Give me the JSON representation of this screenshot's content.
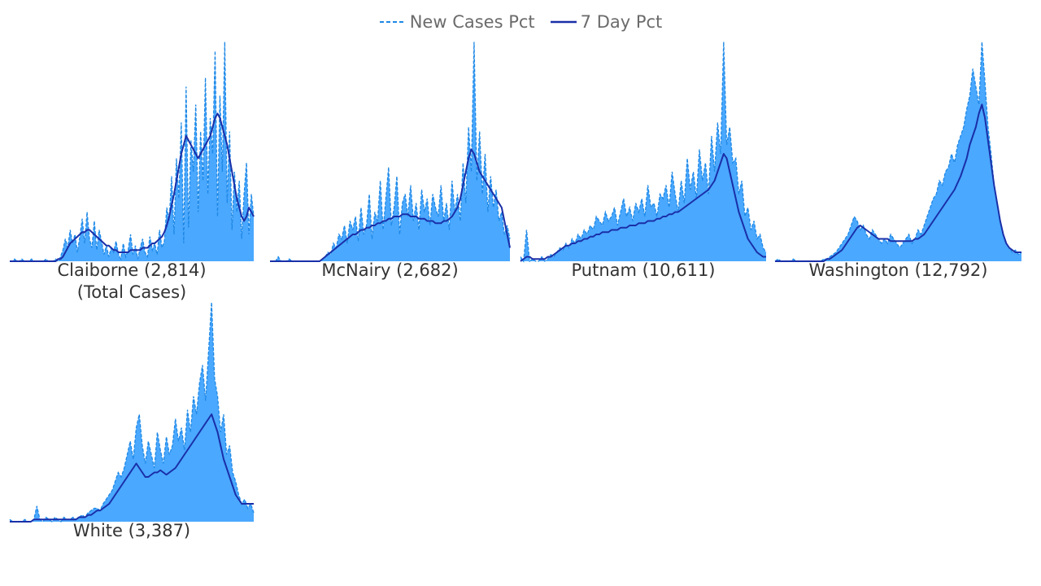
{
  "legend": {
    "new_label": "New Cases Pct",
    "avg_label": "7 Day Pct"
  },
  "colors": {
    "fill": "#4aa8ff",
    "dashed": "#1e88e5",
    "avg": "#1a2fa8"
  },
  "chart_data": [
    {
      "type": "area",
      "label": "Claiborne (2,814)",
      "sublabel": "(Total Cases)",
      "ylim": [
        0,
        100
      ],
      "grid": false,
      "legend_position": "top-center",
      "series": [
        {
          "name": "New Cases Pct",
          "values": [
            0,
            0,
            1,
            0,
            0,
            1,
            0,
            0,
            0,
            1,
            0,
            0,
            0,
            0,
            0,
            1,
            0,
            0,
            0,
            1,
            0,
            2,
            5,
            10,
            6,
            14,
            8,
            12,
            4,
            11,
            19,
            8,
            22,
            10,
            6,
            18,
            5,
            14,
            9,
            3,
            7,
            2,
            6,
            4,
            9,
            3,
            1,
            8,
            2,
            5,
            12,
            3,
            7,
            1,
            6,
            10,
            4,
            2,
            11,
            5,
            8,
            3,
            14,
            6,
            9,
            24,
            18,
            38,
            12,
            46,
            28,
            62,
            8,
            78,
            15,
            54,
            40,
            70,
            22,
            58,
            36,
            82,
            30,
            64,
            48,
            94,
            20,
            74,
            40,
            98,
            26,
            58,
            14,
            40,
            22,
            36,
            10,
            30,
            44,
            12,
            30,
            20
          ]
        },
        {
          "name": "7 Day Pct",
          "values": [
            0,
            0,
            0,
            0,
            0,
            0,
            0,
            0,
            0,
            0,
            0,
            0,
            0,
            0,
            0,
            0,
            0,
            0,
            0,
            0,
            1,
            1,
            2,
            4,
            6,
            8,
            9,
            10,
            11,
            12,
            13,
            13,
            14,
            14,
            13,
            12,
            11,
            10,
            9,
            8,
            7,
            7,
            6,
            5,
            5,
            4,
            4,
            4,
            4,
            4,
            5,
            5,
            5,
            5,
            5,
            6,
            6,
            6,
            7,
            8,
            8,
            9,
            10,
            11,
            13,
            16,
            20,
            25,
            30,
            36,
            42,
            48,
            52,
            56,
            54,
            52,
            50,
            48,
            46,
            48,
            50,
            52,
            54,
            56,
            60,
            64,
            66,
            64,
            60,
            56,
            52,
            46,
            40,
            34,
            28,
            24,
            20,
            18,
            20,
            24,
            22,
            20
          ]
        }
      ]
    },
    {
      "type": "area",
      "label": "McNairy (2,682)",
      "sublabel": "",
      "ylim": [
        0,
        100
      ],
      "grid": false,
      "series": [
        {
          "name": "New Cases Pct",
          "values": [
            0,
            0,
            0,
            2,
            0,
            0,
            0,
            1,
            0,
            0,
            0,
            0,
            0,
            0,
            0,
            0,
            0,
            0,
            0,
            1,
            2,
            4,
            3,
            8,
            6,
            12,
            10,
            16,
            8,
            18,
            14,
            20,
            9,
            24,
            12,
            16,
            30,
            10,
            22,
            18,
            36,
            14,
            28,
            42,
            16,
            24,
            38,
            12,
            26,
            30,
            20,
            34,
            18,
            26,
            14,
            32,
            22,
            28,
            16,
            30,
            24,
            20,
            34,
            18,
            26,
            14,
            36,
            22,
            30,
            18,
            44,
            26,
            60,
            40,
            98,
            36,
            58,
            30,
            48,
            22,
            38,
            24,
            32,
            18,
            22,
            12,
            16,
            10
          ]
        },
        {
          "name": "7 Day Pct",
          "values": [
            0,
            0,
            0,
            0,
            0,
            0,
            0,
            0,
            0,
            0,
            0,
            0,
            0,
            0,
            0,
            0,
            0,
            0,
            0,
            1,
            2,
            3,
            4,
            5,
            6,
            7,
            8,
            9,
            10,
            11,
            12,
            12,
            13,
            14,
            14,
            15,
            15,
            16,
            16,
            17,
            17,
            18,
            18,
            19,
            19,
            20,
            20,
            20,
            21,
            21,
            21,
            20,
            20,
            20,
            19,
            19,
            19,
            18,
            18,
            18,
            17,
            17,
            17,
            18,
            18,
            19,
            20,
            22,
            24,
            28,
            34,
            40,
            46,
            50,
            48,
            44,
            40,
            38,
            36,
            34,
            32,
            30,
            28,
            26,
            24,
            18,
            12,
            6
          ]
        }
      ]
    },
    {
      "type": "area",
      "label": "Putnam (10,611)",
      "sublabel": "",
      "ylim": [
        0,
        100
      ],
      "grid": false,
      "series": [
        {
          "name": "New Cases Pct",
          "values": [
            2,
            0,
            14,
            0,
            1,
            0,
            0,
            2,
            0,
            1,
            3,
            2,
            4,
            6,
            5,
            8,
            6,
            10,
            8,
            12,
            10,
            14,
            12,
            16,
            14,
            20,
            18,
            16,
            22,
            18,
            20,
            24,
            16,
            22,
            28,
            20,
            24,
            18,
            26,
            22,
            28,
            20,
            34,
            24,
            26,
            20,
            30,
            28,
            34,
            24,
            40,
            30,
            22,
            36,
            26,
            46,
            32,
            40,
            28,
            50,
            36,
            44,
            30,
            56,
            40,
            62,
            48,
            98,
            52,
            60,
            44,
            46,
            30,
            36,
            20,
            24,
            14,
            18,
            10,
            12,
            6,
            4
          ]
        },
        {
          "name": "7 Day Pct",
          "values": [
            0,
            1,
            2,
            2,
            1,
            1,
            1,
            1,
            1,
            2,
            2,
            3,
            4,
            5,
            6,
            7,
            7,
            8,
            8,
            9,
            9,
            10,
            10,
            11,
            11,
            12,
            12,
            13,
            13,
            13,
            14,
            14,
            14,
            15,
            15,
            15,
            16,
            16,
            16,
            17,
            17,
            17,
            18,
            18,
            18,
            19,
            19,
            20,
            20,
            21,
            21,
            22,
            22,
            23,
            24,
            25,
            26,
            27,
            28,
            29,
            30,
            31,
            32,
            34,
            36,
            40,
            44,
            48,
            46,
            40,
            34,
            28,
            22,
            18,
            14,
            10,
            8,
            6,
            4,
            3,
            2,
            2
          ]
        }
      ]
    },
    {
      "type": "area",
      "label": "Washington (12,792)",
      "sublabel": "",
      "ylim": [
        0,
        100
      ],
      "grid": false,
      "series": [
        {
          "name": "New Cases Pct",
          "values": [
            0,
            1,
            0,
            0,
            0,
            0,
            1,
            0,
            0,
            0,
            0,
            0,
            0,
            0,
            0,
            0,
            1,
            1,
            2,
            3,
            4,
            6,
            8,
            10,
            12,
            16,
            20,
            18,
            14,
            16,
            12,
            10,
            14,
            12,
            10,
            8,
            10,
            8,
            12,
            10,
            8,
            6,
            8,
            10,
            12,
            8,
            10,
            14,
            12,
            16,
            20,
            24,
            28,
            30,
            36,
            34,
            40,
            42,
            48,
            44,
            52,
            56,
            60,
            68,
            74,
            86,
            78,
            70,
            98,
            80,
            60,
            48,
            34,
            26,
            18,
            12,
            8,
            6,
            4,
            5,
            3,
            4
          ]
        },
        {
          "name": "7 Day Pct",
          "values": [
            0,
            0,
            0,
            0,
            0,
            0,
            0,
            0,
            0,
            0,
            0,
            0,
            0,
            0,
            0,
            0,
            0,
            1,
            1,
            2,
            3,
            4,
            5,
            7,
            9,
            11,
            13,
            15,
            16,
            15,
            14,
            13,
            12,
            11,
            10,
            10,
            10,
            10,
            9,
            9,
            9,
            9,
            9,
            9,
            9,
            9,
            10,
            10,
            11,
            12,
            14,
            16,
            18,
            20,
            22,
            24,
            26,
            28,
            30,
            32,
            35,
            38,
            42,
            46,
            52,
            56,
            60,
            66,
            70,
            64,
            54,
            44,
            34,
            26,
            18,
            12,
            8,
            6,
            5,
            4,
            4,
            4
          ]
        }
      ]
    },
    {
      "type": "area",
      "label": "White (3,387)",
      "sublabel": "",
      "ylim": [
        0,
        100
      ],
      "grid": false,
      "series": [
        {
          "name": "New Cases Pct",
          "values": [
            1,
            0,
            0,
            0,
            0,
            1,
            0,
            0,
            1,
            7,
            1,
            0,
            2,
            1,
            0,
            2,
            1,
            0,
            2,
            1,
            1,
            2,
            1,
            2,
            3,
            2,
            4,
            5,
            6,
            6,
            5,
            8,
            10,
            12,
            14,
            18,
            22,
            20,
            24,
            30,
            36,
            28,
            42,
            48,
            34,
            26,
            36,
            30,
            24,
            40,
            32,
            26,
            38,
            30,
            34,
            46,
            36,
            42,
            32,
            50,
            40,
            56,
            48,
            62,
            70,
            54,
            76,
            98,
            64,
            56,
            40,
            48,
            30,
            34,
            22,
            18,
            12,
            8,
            10,
            6,
            8,
            4
          ]
        },
        {
          "name": "7 Day Pct",
          "values": [
            0,
            0,
            0,
            0,
            0,
            0,
            0,
            0,
            1,
            1,
            1,
            1,
            1,
            1,
            1,
            1,
            1,
            1,
            1,
            1,
            1,
            1,
            1,
            2,
            2,
            2,
            3,
            3,
            4,
            5,
            5,
            6,
            7,
            8,
            10,
            12,
            14,
            16,
            18,
            20,
            22,
            24,
            26,
            24,
            22,
            20,
            20,
            21,
            22,
            22,
            23,
            22,
            21,
            22,
            23,
            24,
            26,
            28,
            30,
            32,
            34,
            36,
            38,
            40,
            42,
            44,
            46,
            48,
            44,
            40,
            34,
            28,
            24,
            20,
            16,
            12,
            10,
            8,
            8,
            8,
            8,
            8
          ]
        }
      ]
    }
  ]
}
